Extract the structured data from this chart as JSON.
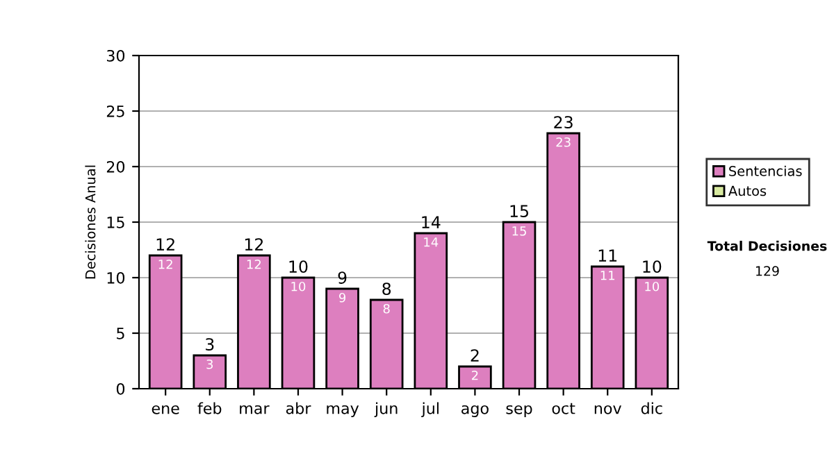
{
  "chart_data": {
    "type": "bar",
    "stacked": true,
    "ylabel": "Decisiones Anual",
    "categories": [
      "ene",
      "feb",
      "mar",
      "abr",
      "may",
      "jun",
      "jul",
      "ago",
      "sep",
      "oct",
      "nov",
      "dic"
    ],
    "series": [
      {
        "name": "Sentencias",
        "color": "#dd7fbf",
        "values": [
          12,
          3,
          12,
          10,
          9,
          8,
          14,
          2,
          15,
          23,
          11,
          10
        ],
        "value_labels": [
          "12",
          "3",
          "12",
          "10",
          "9",
          "8",
          "14",
          "2",
          "15",
          "23",
          "11",
          "10"
        ]
      },
      {
        "name": "Autos",
        "color": "#d8eaa0",
        "values": [
          0,
          0,
          0,
          0,
          0,
          0,
          0,
          0,
          0,
          0,
          0,
          0
        ]
      }
    ],
    "totals": [
      "12",
      "3",
      "12",
      "10",
      "9",
      "8",
      "14",
      "2",
      "15",
      "23",
      "11",
      "10"
    ],
    "ylim": [
      0,
      30
    ],
    "yticks": [
      0,
      5,
      10,
      15,
      20,
      25,
      30
    ],
    "grid": "y",
    "legend": "right",
    "annotations": [
      "Total Decisiones",
      "129"
    ]
  }
}
